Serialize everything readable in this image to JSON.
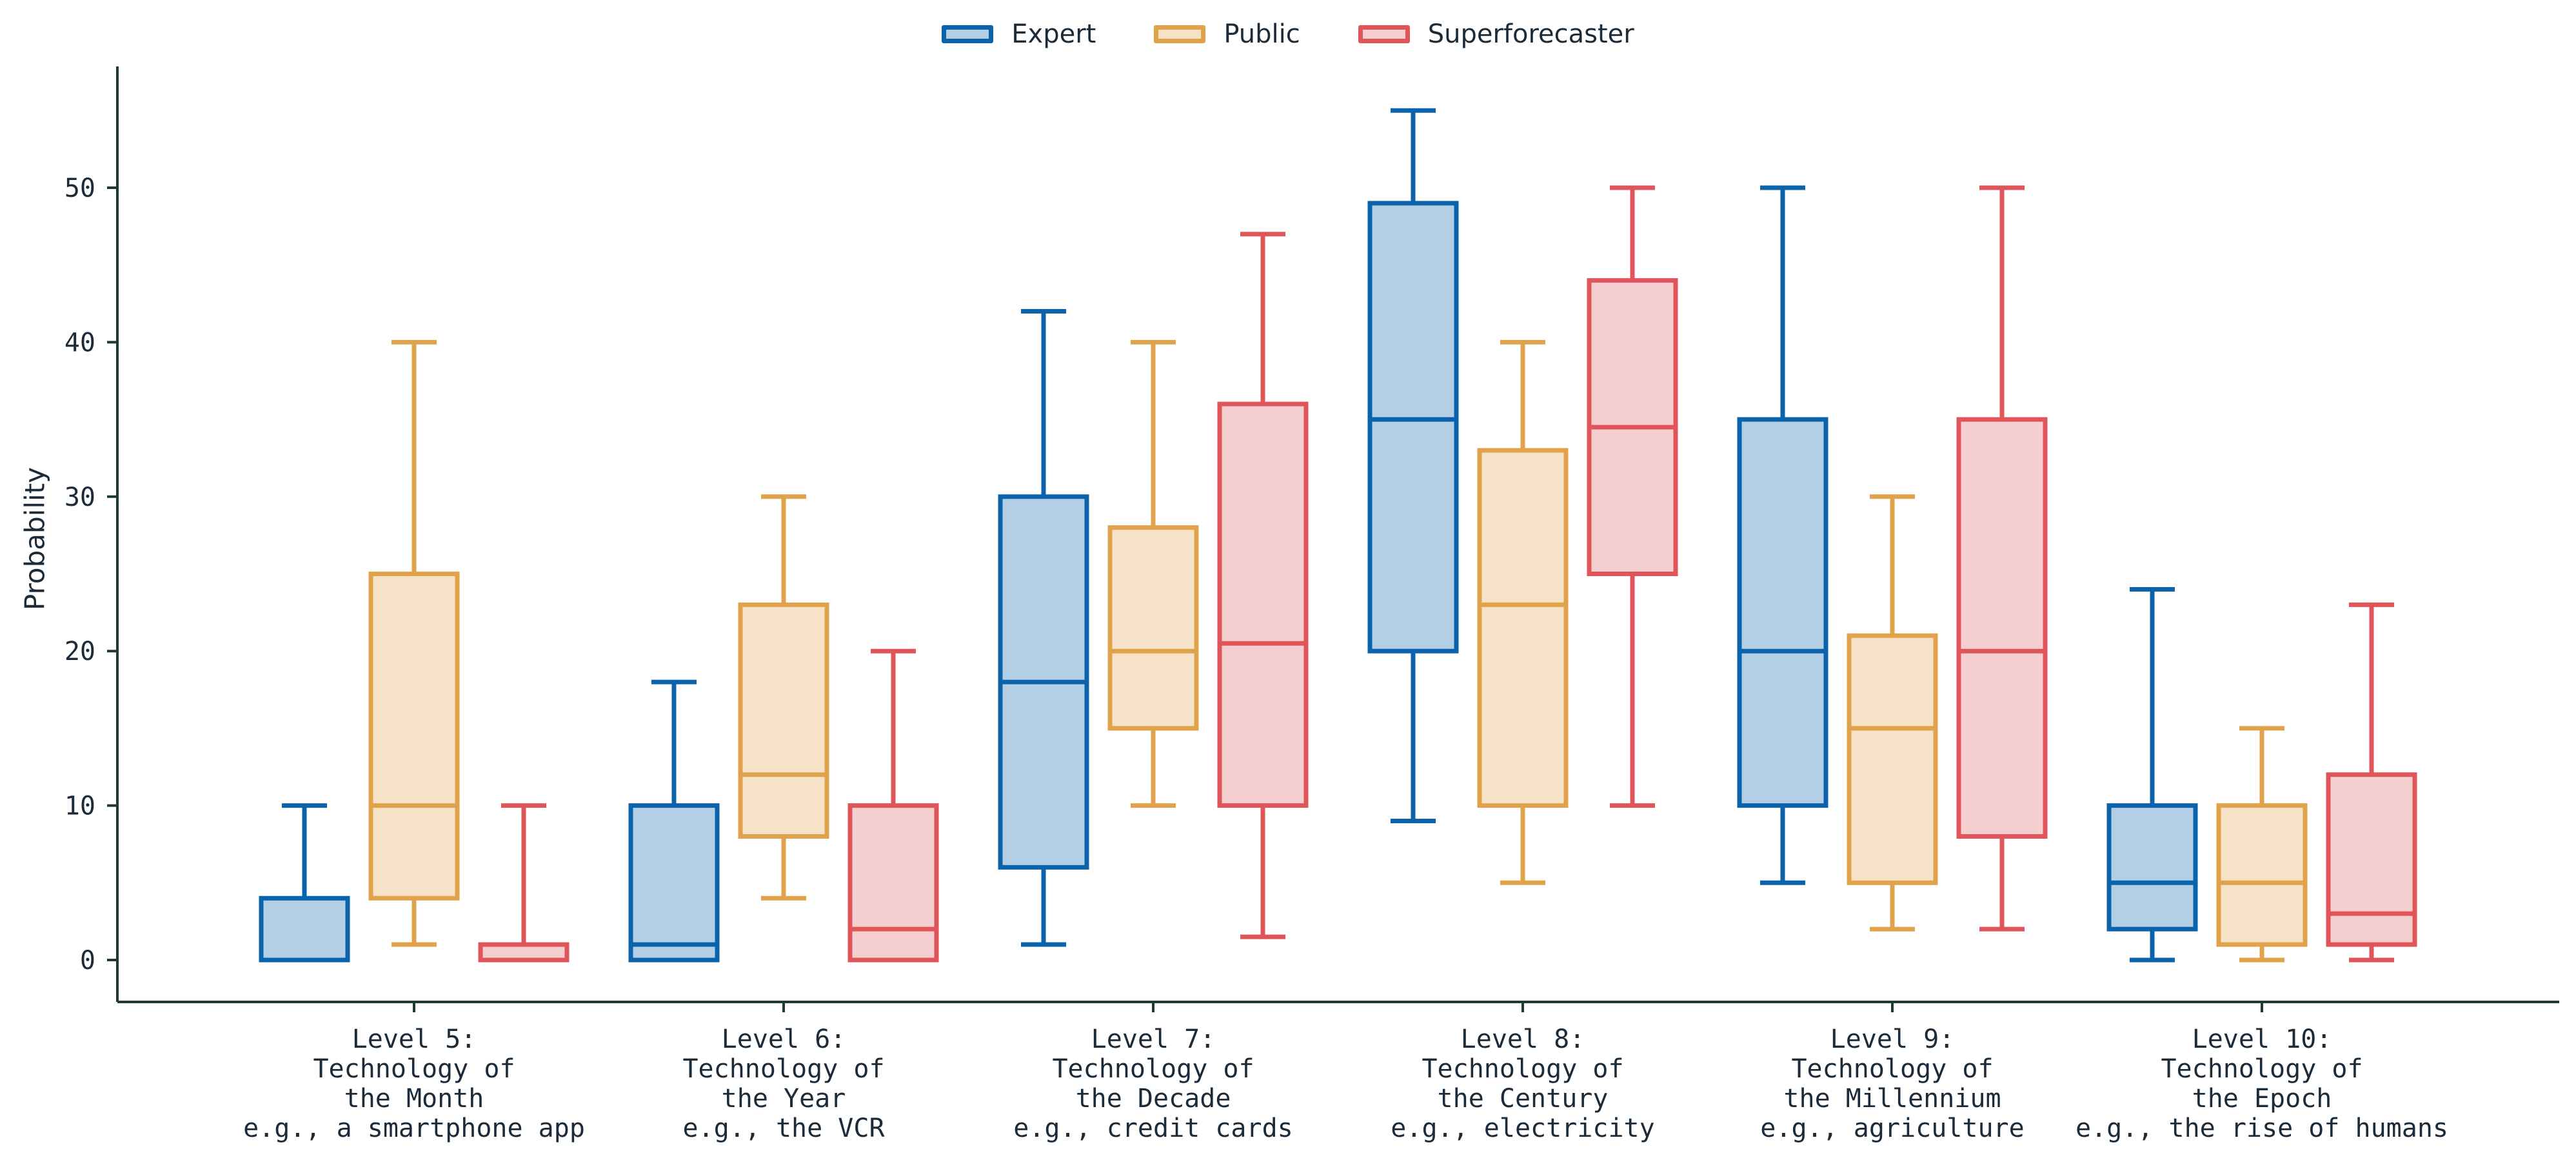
{
  "chart_data": {
    "type": "box",
    "ylabel": "Probability",
    "ylim": [
      -3,
      58
    ],
    "yticks": [
      0,
      10,
      20,
      30,
      40,
      50
    ],
    "legend_position": "top-center",
    "grid": false,
    "categories": [
      [
        "Level 5:",
        "Technology of",
        "the Month",
        "e.g., a smartphone app"
      ],
      [
        "Level 6:",
        "Technology of",
        "the Year",
        "e.g., the VCR"
      ],
      [
        "Level 7:",
        "Technology of",
        "the Decade",
        "e.g., credit cards"
      ],
      [
        "Level 8:",
        "Technology of",
        "the Century",
        "e.g., electricity"
      ],
      [
        "Level 9:",
        "Technology of",
        "the Millennium",
        "e.g., agriculture"
      ],
      [
        "Level 10:",
        "Technology of",
        "the Epoch",
        "e.g., the rise of humans"
      ]
    ],
    "series": [
      {
        "name": "Expert",
        "color": "#0b63ab",
        "fill": "#b3cfe6",
        "boxes": [
          {
            "whisker_low": 0,
            "q1": 0,
            "median": 0,
            "q3": 4,
            "whisker_high": 10
          },
          {
            "whisker_low": 0,
            "q1": 0,
            "median": 1,
            "q3": 10,
            "whisker_high": 18
          },
          {
            "whisker_low": 1,
            "q1": 6,
            "median": 18,
            "q3": 30,
            "whisker_high": 42
          },
          {
            "whisker_low": 9,
            "q1": 20,
            "median": 35,
            "q3": 49,
            "whisker_high": 55
          },
          {
            "whisker_low": 5,
            "q1": 10,
            "median": 20,
            "q3": 35,
            "whisker_high": 50
          },
          {
            "whisker_low": 0,
            "q1": 2,
            "median": 5,
            "q3": 10,
            "whisker_high": 24
          }
        ]
      },
      {
        "name": "Public",
        "color": "#e0a24a",
        "fill": "#f6e2c7",
        "boxes": [
          {
            "whisker_low": 1,
            "q1": 4,
            "median": 10,
            "q3": 25,
            "whisker_high": 40
          },
          {
            "whisker_low": 4,
            "q1": 8,
            "median": 12,
            "q3": 23,
            "whisker_high": 30
          },
          {
            "whisker_low": 10,
            "q1": 15,
            "median": 20,
            "q3": 28,
            "whisker_high": 40
          },
          {
            "whisker_low": 5,
            "q1": 10,
            "median": 23,
            "q3": 33,
            "whisker_high": 40
          },
          {
            "whisker_low": 2,
            "q1": 5,
            "median": 15,
            "q3": 21,
            "whisker_high": 30
          },
          {
            "whisker_low": 0,
            "q1": 1,
            "median": 5,
            "q3": 10,
            "whisker_high": 15
          }
        ]
      },
      {
        "name": "Superforecaster",
        "color": "#df5559",
        "fill": "#f5cfd0",
        "boxes": [
          {
            "whisker_low": 0,
            "q1": 0,
            "median": 0,
            "q3": 1,
            "whisker_high": 10
          },
          {
            "whisker_low": 0,
            "q1": 0,
            "median": 2,
            "q3": 10,
            "whisker_high": 20
          },
          {
            "whisker_low": 1.5,
            "q1": 10,
            "median": 20.5,
            "q3": 36,
            "whisker_high": 47
          },
          {
            "whisker_low": 10,
            "q1": 25,
            "median": 34.5,
            "q3": 44,
            "whisker_high": 50
          },
          {
            "whisker_low": 2,
            "q1": 8,
            "median": 20,
            "q3": 35,
            "whisker_high": 50
          },
          {
            "whisker_low": 0,
            "q1": 1,
            "median": 3,
            "q3": 12,
            "whisker_high": 23
          }
        ]
      }
    ]
  }
}
